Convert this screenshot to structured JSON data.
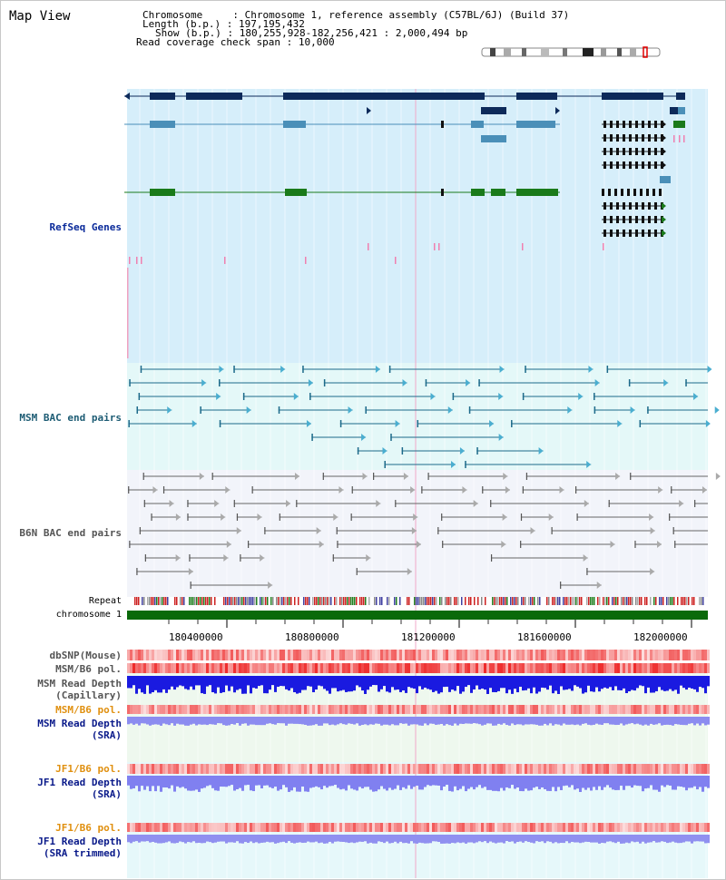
{
  "title": "Map View",
  "info": {
    "chromosome_label": "Chromosome",
    "chromosome_value": "Chromosome 1, reference assembly (C57BL/6J) (Build 37)",
    "length_label": "Length (b.p.)",
    "length_value": "197,195,432",
    "show_label": "Show (b.p.)",
    "show_value": "180,255,928-182,256,421 : 2,000,494 bp",
    "coverage_label": "Read coverage check span",
    "coverage_value": "10,000"
  },
  "tracks": {
    "refseq": "RefSeq Genes",
    "msm_bac": "MSM BAC end pairs",
    "b6n_bac": "B6N BAC end pairs",
    "repeat": "Repeat",
    "chromosome": "chromosome 1",
    "dbsnp": "dbSNP(Mouse)",
    "msm_pol_1": "MSM/B6 pol.",
    "msm_depth_cap_1": "MSM Read Depth",
    "msm_depth_cap_2": "(Capillary)",
    "msm_pol_2": "MSM/B6 pol.",
    "msm_depth_sra_1": "MSM Read Depth",
    "msm_depth_sra_2": "(SRA)",
    "jf1_pol_1": "JF1/B6 pol.",
    "jf1_depth_sra_1": "JF1 Read Depth",
    "jf1_depth_sra_2": "(SRA)",
    "jf1_pol_2": "JF1/B6 pol.",
    "jf1_depth_trim_1": "JF1 Read Depth",
    "jf1_depth_trim_2": "(SRA trimmed)"
  },
  "axis_ticks": [
    "180400000",
    "180800000",
    "181200000",
    "181600000",
    "182000000"
  ],
  "colors": {
    "refseq_bg": "#d6eefa",
    "bac_bg": "#e4f8f8",
    "gene_navy": "#0d2a5a",
    "gene_light": "#4a8fb8",
    "gene_green": "#1a7a1a",
    "chromosome": "#0a6a0a",
    "depth_blue": "#1a1ae0",
    "depth_lavender": "#8080f0",
    "pol_red": "#f05050"
  }
}
